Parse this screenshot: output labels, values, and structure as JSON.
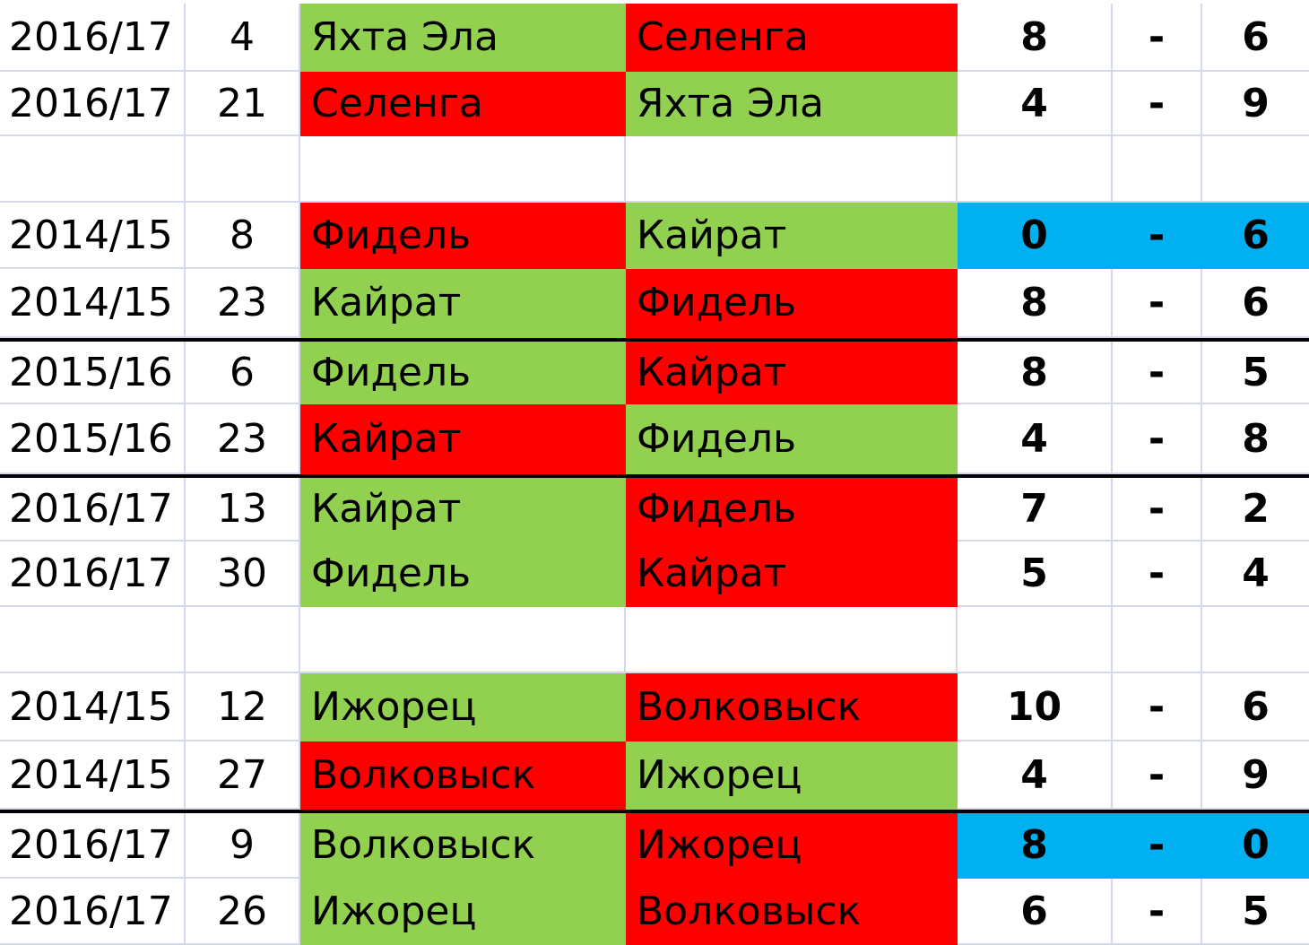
{
  "colors": {
    "winner": "#92d050",
    "loser": "#ff0000",
    "highlight": "#00b0f0",
    "grid": "#d4d8e8"
  },
  "rows": [
    {
      "season": "2016/17",
      "round": "4",
      "home": "Яхта Эла",
      "home_color": "green",
      "away": "Селенга",
      "away_color": "red",
      "home_score": "8",
      "sep": "-",
      "away_score": "6",
      "score_color": "",
      "thick_top": false
    },
    {
      "season": "2016/17",
      "round": "21",
      "home": "Селенга",
      "home_color": "red",
      "away": "Яхта Эла",
      "away_color": "green",
      "home_score": "4",
      "sep": "-",
      "away_score": "9",
      "score_color": "",
      "thick_top": false
    },
    {
      "blank": true
    },
    {
      "season": "2014/15",
      "round": "8",
      "home": "Фидель",
      "home_color": "red",
      "away": "Кайрат",
      "away_color": "green",
      "home_score": "0",
      "sep": "-",
      "away_score": "6",
      "score_color": "blue",
      "thick_top": false
    },
    {
      "season": "2014/15",
      "round": "23",
      "home": "Кайрат",
      "home_color": "green",
      "away": "Фидель",
      "away_color": "red",
      "home_score": "8",
      "sep": "-",
      "away_score": "6",
      "score_color": "",
      "thick_top": false
    },
    {
      "season": "2015/16",
      "round": "6",
      "home": "Фидель",
      "home_color": "green",
      "away": "Кайрат",
      "away_color": "red",
      "home_score": "8",
      "sep": "-",
      "away_score": "5",
      "score_color": "",
      "thick_top": true
    },
    {
      "season": "2015/16",
      "round": "23",
      "home": "Кайрат",
      "home_color": "red",
      "away": "Фидель",
      "away_color": "green",
      "home_score": "4",
      "sep": "-",
      "away_score": "8",
      "score_color": "",
      "thick_top": false
    },
    {
      "season": "2016/17",
      "round": "13",
      "home": "Кайрат",
      "home_color": "green",
      "away": "Фидель",
      "away_color": "red",
      "home_score": "7",
      "sep": "-",
      "away_score": "2",
      "score_color": "",
      "thick_top": true
    },
    {
      "season": "2016/17",
      "round": "30",
      "home": "Фидель",
      "home_color": "green",
      "away": "Кайрат",
      "away_color": "red",
      "home_score": "5",
      "sep": "-",
      "away_score": "4",
      "score_color": "",
      "thick_top": false
    },
    {
      "blank": true
    },
    {
      "season": "2014/15",
      "round": "12",
      "home": "Ижорец",
      "home_color": "green",
      "away": "Волковыск",
      "away_color": "red",
      "home_score": "10",
      "sep": "-",
      "away_score": "6",
      "score_color": "",
      "thick_top": false
    },
    {
      "season": "2014/15",
      "round": "27",
      "home": "Волковыск",
      "home_color": "red",
      "away": "Ижорец",
      "away_color": "green",
      "home_score": "4",
      "sep": "-",
      "away_score": "9",
      "score_color": "",
      "thick_top": false
    },
    {
      "season": "2016/17",
      "round": "9",
      "home": "Волковыск",
      "home_color": "green",
      "away": "Ижорец",
      "away_color": "red",
      "home_score": "8",
      "sep": "-",
      "away_score": "0",
      "score_color": "blue",
      "thick_top": true
    },
    {
      "season": "2016/17",
      "round": "26",
      "home": "Ижорец",
      "home_color": "green",
      "away": "Волковыск",
      "away_color": "red",
      "home_score": "6",
      "sep": "-",
      "away_score": "5",
      "score_color": "",
      "thick_top": false
    }
  ]
}
